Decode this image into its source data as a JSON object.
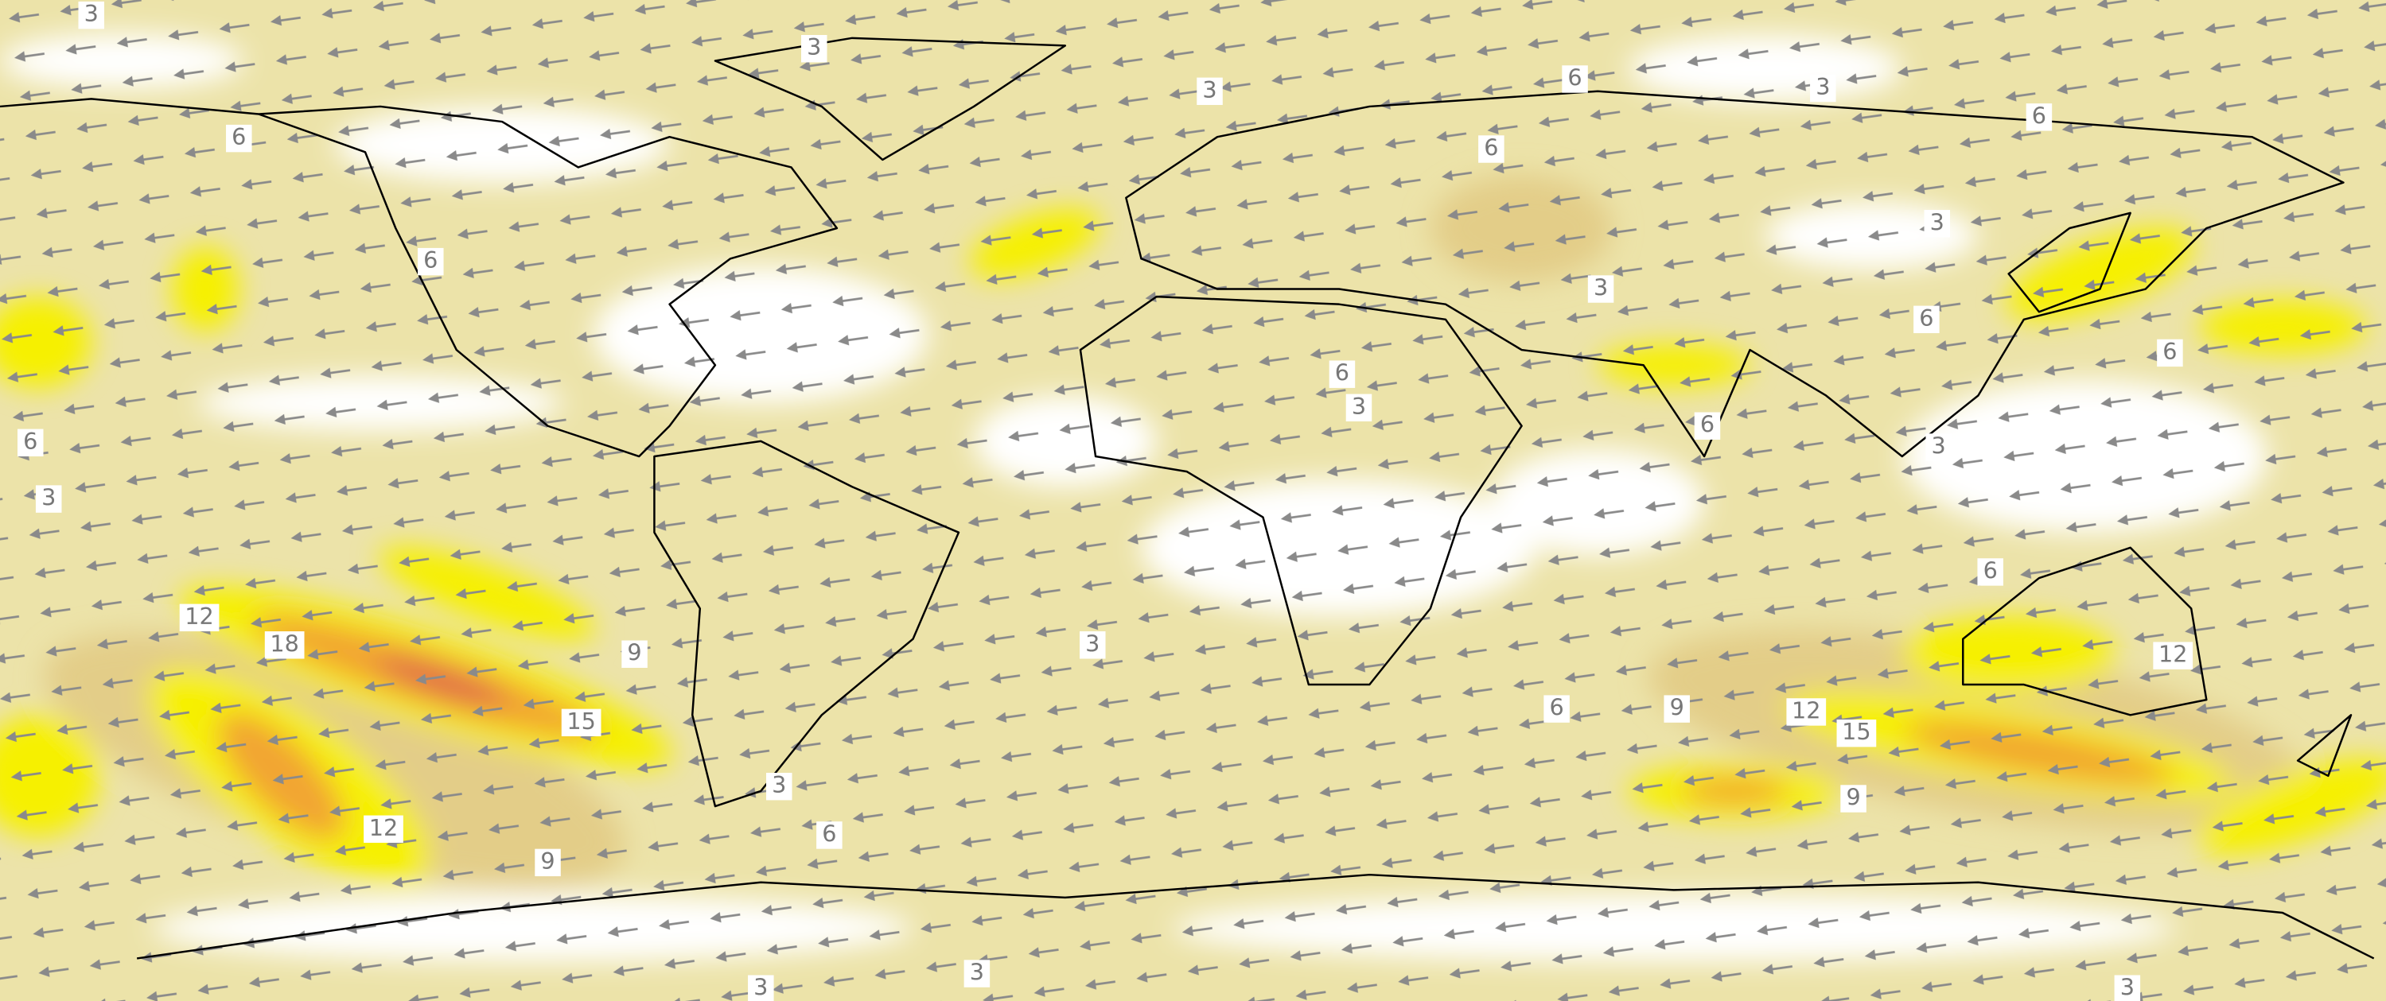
{
  "map": {
    "contour_labels": [
      3,
      3,
      6,
      3,
      3,
      6,
      6,
      6,
      6,
      3,
      3,
      6,
      6,
      6,
      3,
      6,
      6,
      3,
      3,
      6,
      12,
      18,
      9,
      3,
      12,
      15,
      6,
      9,
      12,
      15,
      3,
      9,
      12,
      6,
      9,
      3,
      3,
      3
    ]
  }
}
